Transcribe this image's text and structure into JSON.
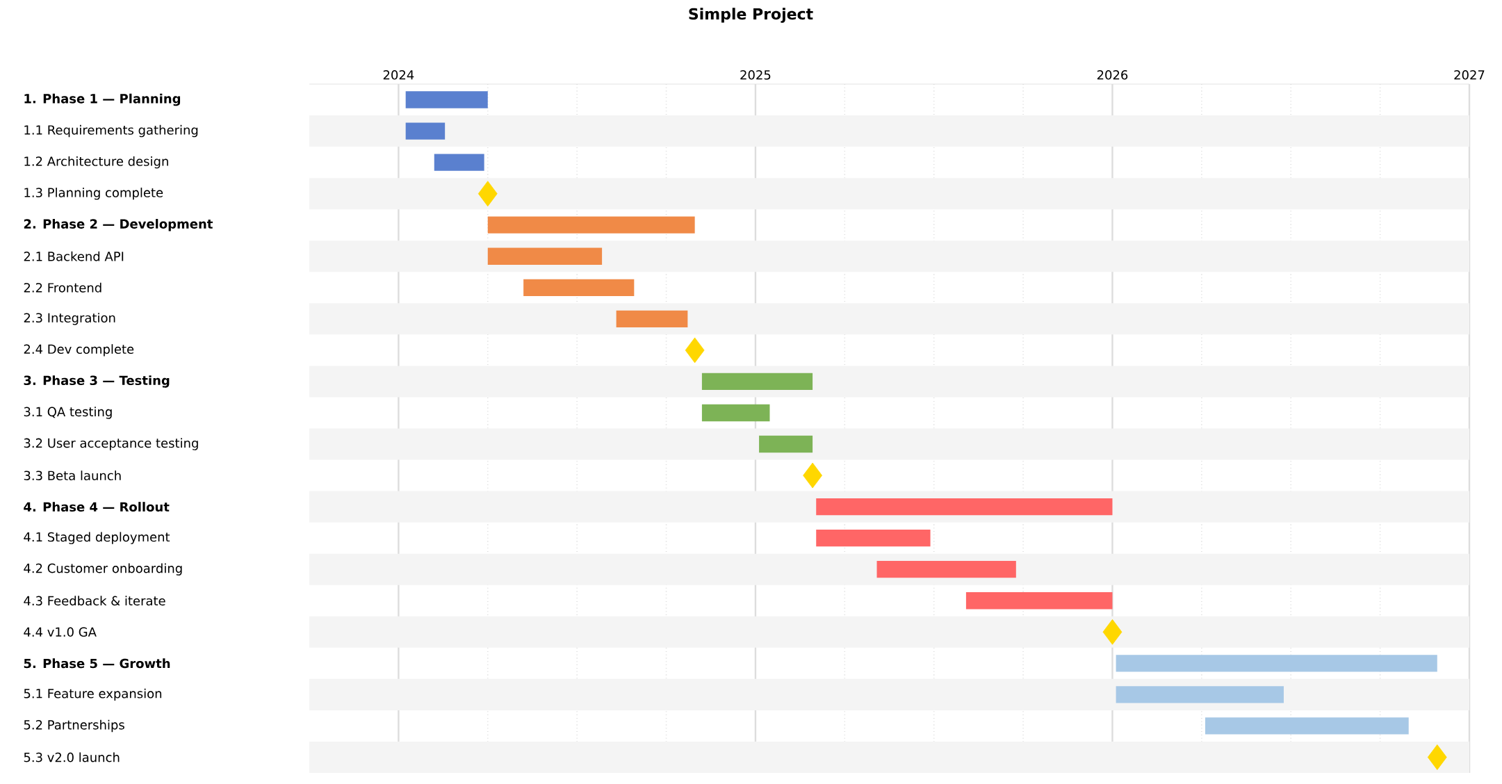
{
  "chart_data": {
    "type": "bar",
    "orientation": "horizontal",
    "title": "Simple Project",
    "categories": [
      "1.  Phase 1 — Planning",
      "1.1  Requirements gathering",
      "1.2  Architecture design",
      "1.3  Planning complete",
      "2.  Phase 2 — Development",
      "2.1  Backend API",
      "2.2  Frontend",
      "2.3  Integration",
      "2.4  Dev complete",
      "3.  Phase 3 — Testing",
      "3.1  QA testing",
      "3.2  User acceptance testing",
      "3.3  Beta launch",
      "4.  Phase 4 — Rollout",
      "4.1  Staged deployment",
      "4.2  Customer onboarding",
      "4.3  Feedback & iterate",
      "4.4  v1.0 GA",
      "5.  Phase 5 — Growth",
      "5.1  Feature expansion",
      "5.2  Partnerships",
      "5.3  v2.0 launch"
    ],
    "series": [
      {
        "type": "bar",
        "colors": [
          "#5a80cf",
          null,
          null,
          null,
          "#f08a47",
          null,
          null,
          null,
          null,
          "#7db356",
          null,
          null,
          null,
          "#ff6666",
          null,
          null,
          null,
          null,
          "#a7c8e6",
          null,
          null,
          null
        ],
        "base": [
          2024.02,
          null,
          null,
          null,
          2024.25,
          null,
          null,
          null,
          null,
          2024.85,
          null,
          null,
          null,
          2025.17,
          null,
          null,
          null,
          null,
          2026.01,
          null,
          null,
          null
        ],
        "values": [
          0.23,
          null,
          null,
          null,
          0.58,
          null,
          null,
          null,
          null,
          0.31,
          null,
          null,
          null,
          0.83,
          null,
          null,
          null,
          null,
          0.9,
          null,
          null,
          null
        ]
      },
      {
        "type": "bar",
        "colors": [
          null,
          "#5a80cf",
          "#5a80cf",
          null,
          null,
          "#f08a47",
          "#f08a47",
          "#f08a47",
          null,
          null,
          "#7db356",
          "#7db356",
          null,
          null,
          "#ff6666",
          "#ff6666",
          "#ff6666",
          null,
          null,
          "#a7c8e6",
          "#a7c8e6",
          null
        ],
        "base": [
          null,
          2024.02,
          2024.1,
          null,
          null,
          2024.25,
          2024.35,
          2024.61,
          null,
          null,
          2024.85,
          2025.01,
          null,
          null,
          2025.17,
          2025.34,
          2025.59,
          null,
          null,
          2026.01,
          2026.26,
          null
        ],
        "values": [
          null,
          0.11,
          0.14,
          null,
          null,
          0.32,
          0.31,
          0.2,
          null,
          null,
          0.19,
          0.15,
          null,
          null,
          0.32,
          0.39,
          0.41,
          null,
          null,
          0.47,
          0.57,
          null
        ]
      },
      {
        "type": "scatter",
        "marker": "diamond",
        "color": "#ffd700",
        "values": [
          null,
          null,
          null,
          2024.25,
          null,
          null,
          null,
          null,
          2024.83,
          null,
          null,
          null,
          2025.16,
          null,
          null,
          null,
          null,
          2026.0,
          null,
          null,
          null,
          2026.91
        ]
      }
    ],
    "xlim": [
      2023.75,
      2027
    ],
    "xticks": [
      2024,
      {
        "value": 2024.25,
        "label": null
      },
      {
        "value": 2024.5,
        "label": null
      },
      {
        "value": 2024.75,
        "label": null
      },
      2025,
      {
        "value": 2025.25,
        "label": null
      },
      {
        "value": 2025.5,
        "label": null
      },
      {
        "value": 2025.75,
        "label": null
      },
      2026,
      {
        "value": 2026.25,
        "label": null
      },
      {
        "value": 2026.5,
        "label": null
      },
      {
        "value": 2026.75,
        "label": null
      },
      2027
    ],
    "grid": "x"
  }
}
